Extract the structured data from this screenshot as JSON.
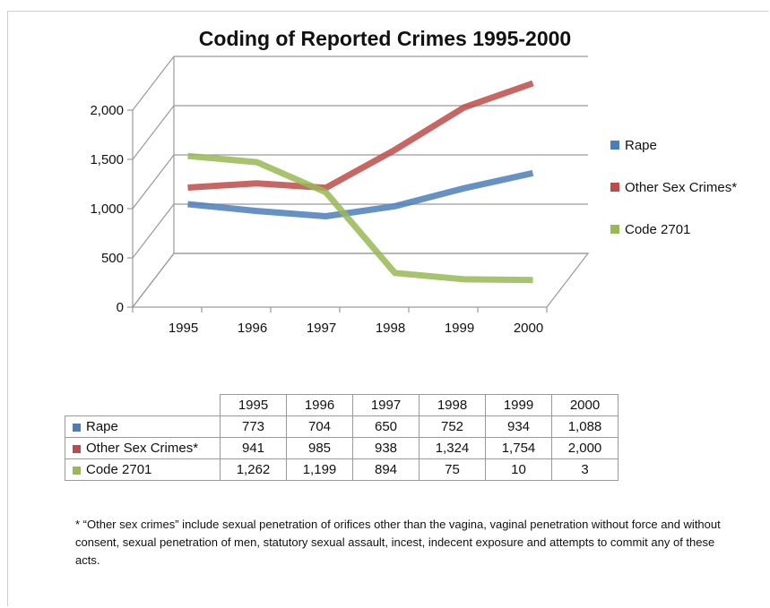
{
  "chart_data": {
    "type": "line",
    "title": "Coding of Reported Crimes 1995-2000",
    "categories": [
      "1995",
      "1996",
      "1997",
      "1998",
      "1999",
      "2000"
    ],
    "y_ticks": [
      "0",
      "500",
      "1,000",
      "1,500",
      "2,000"
    ],
    "ylim": [
      0,
      2000
    ],
    "grid": true,
    "legend_position": "right",
    "series": [
      {
        "name": "Rape",
        "color": "#4a7ebb",
        "values": [
          773,
          704,
          650,
          752,
          934,
          1088
        ]
      },
      {
        "name": "Other Sex Crimes*",
        "color": "#be4b48",
        "values": [
          941,
          985,
          938,
          1324,
          1754,
          2000
        ]
      },
      {
        "name": "Code 2701",
        "color": "#98b954",
        "values": [
          1262,
          1199,
          894,
          75,
          10,
          3
        ]
      }
    ]
  },
  "table": {
    "headers": [
      "1995",
      "1996",
      "1997",
      "1998",
      "1999",
      "2000"
    ],
    "rows": [
      {
        "label": "Rape",
        "color": "#4a7ebb",
        "cells": [
          "773",
          "704",
          "650",
          "752",
          "934",
          "1,088"
        ]
      },
      {
        "label": "Other Sex Crimes*",
        "color": "#be4b48",
        "cells": [
          "941",
          "985",
          "938",
          "1,324",
          "1,754",
          "2,000"
        ]
      },
      {
        "label": "Code 2701",
        "color": "#98b954",
        "cells": [
          "1,262",
          "1,199",
          "894",
          "75",
          "10",
          "3"
        ]
      }
    ]
  },
  "footnote": "* “Other sex crimes” include sexual penetration of orifices other than the vagina, vaginal penetration without force and without consent, sexual penetration of men, statutory sexual assault, incest, indecent exposure and attempts to commit any of these acts."
}
